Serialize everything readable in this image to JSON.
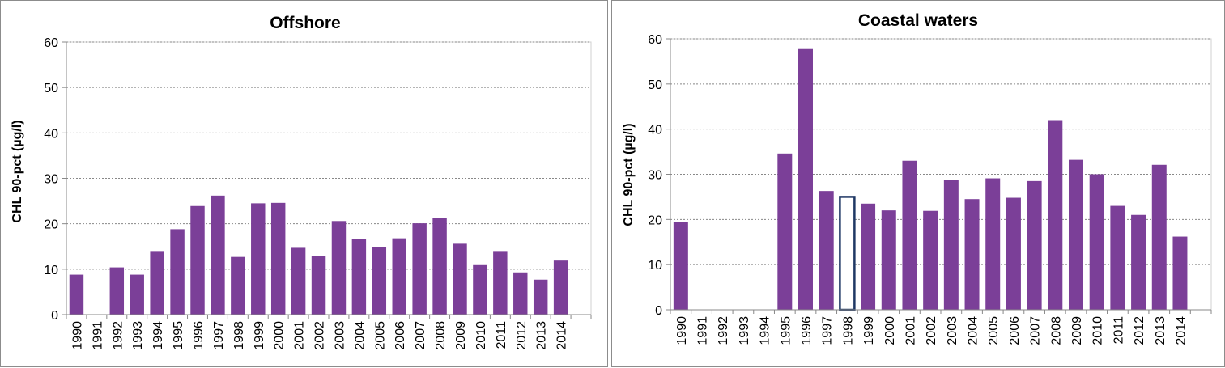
{
  "chart_data": [
    {
      "type": "bar",
      "title": "Offshore",
      "xlabel": "",
      "ylabel": "CHL 90-pct (µg/l)",
      "ylim": [
        0,
        60
      ],
      "yticks": [
        0,
        10,
        20,
        30,
        40,
        50,
        60
      ],
      "grid": true,
      "categories": [
        "1990",
        "1991",
        "1992",
        "1993",
        "1994",
        "1995",
        "1996",
        "1997",
        "1998",
        "1999",
        "2000",
        "2001",
        "2002",
        "2003",
        "2004",
        "2005",
        "2006",
        "2007",
        "2008",
        "2009",
        "2010",
        "2011",
        "2012",
        "2013",
        "2014"
      ],
      "values": [
        8.8,
        null,
        10.4,
        8.8,
        14.0,
        18.8,
        23.9,
        26.2,
        12.7,
        24.5,
        24.6,
        14.7,
        12.9,
        20.6,
        16.7,
        14.9,
        16.8,
        20.1,
        21.3,
        15.6,
        10.9,
        14.0,
        9.3,
        7.7,
        11.9
      ],
      "bar_color": "#7b3f98"
    },
    {
      "type": "bar",
      "title": "Coastal waters",
      "xlabel": "",
      "ylabel": "CHL 90-pct (µg/l)",
      "ylim": [
        0,
        60
      ],
      "yticks": [
        0,
        10,
        20,
        30,
        40,
        50,
        60
      ],
      "grid": true,
      "categories": [
        "1990",
        "1991",
        "1992",
        "1993",
        "1994",
        "1995",
        "1996",
        "1997",
        "1998",
        "1999",
        "2000",
        "2001",
        "2002",
        "2003",
        "2004",
        "2005",
        "2006",
        "2007",
        "2008",
        "2009",
        "2010",
        "2011",
        "2012",
        "2013",
        "2014"
      ],
      "values": [
        19.4,
        null,
        null,
        null,
        null,
        34.6,
        57.9,
        26.3,
        25.0,
        23.5,
        22.0,
        33.0,
        21.9,
        28.7,
        24.5,
        29.1,
        24.8,
        28.5,
        42.0,
        33.2,
        30.0,
        23.0,
        21.0,
        32.1,
        16.2
      ],
      "highlight_categories": [
        "1998"
      ],
      "bar_color": "#7b3f98",
      "highlight_color": "#1f3864"
    }
  ]
}
